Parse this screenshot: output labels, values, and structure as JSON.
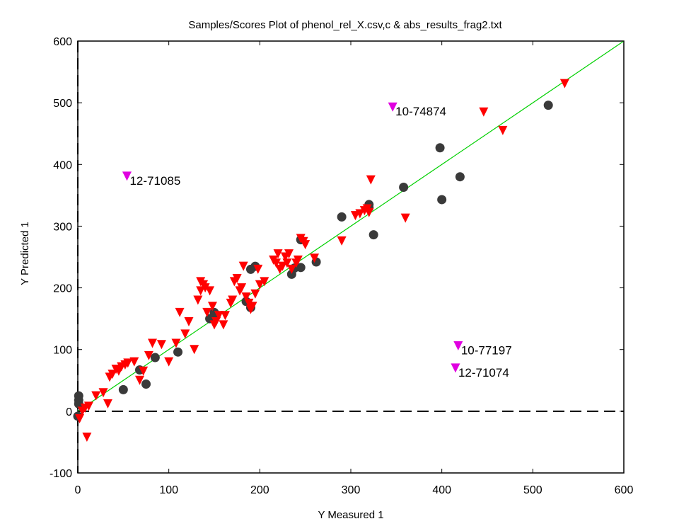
{
  "chart_data": {
    "type": "scatter",
    "title": "Samples/Scores Plot of phenol_rel_X.csv,c & abs_results_frag2.txt",
    "xlabel": "Y Measured 1",
    "ylabel": "Y Predicted 1",
    "xlim": [
      0,
      600
    ],
    "ylim": [
      -100,
      600
    ],
    "xticks": [
      0,
      100,
      200,
      300,
      400,
      500,
      600
    ],
    "yticks": [
      -100,
      0,
      100,
      200,
      300,
      400,
      500,
      600
    ],
    "grid": false,
    "reference_lines": [
      {
        "kind": "identity",
        "color": "#00d000",
        "from": [
          0,
          0
        ],
        "to": [
          600,
          600
        ]
      },
      {
        "kind": "zero-dashed",
        "color": "#000000"
      }
    ],
    "series": [
      {
        "marker": "circle",
        "color": "#3a3a3a",
        "x": [
          1,
          1,
          1,
          0,
          50,
          68,
          75,
          85,
          110,
          145,
          150,
          150,
          185,
          190,
          190,
          195,
          235,
          238,
          245,
          245,
          262,
          290,
          320,
          320,
          325,
          358,
          398,
          400,
          420,
          517
        ],
        "y": [
          25,
          18,
          12,
          -8,
          35,
          67,
          44,
          87,
          96,
          150,
          160,
          156,
          178,
          168,
          230,
          235,
          222,
          232,
          278,
          233,
          242,
          315,
          330,
          335,
          286,
          363,
          427,
          343,
          380,
          496
        ]
      },
      {
        "marker": "triangle-down",
        "color": "#ff0000",
        "x": [
          2,
          5,
          8,
          10,
          12,
          20,
          28,
          33,
          35,
          38,
          42,
          45,
          48,
          52,
          55,
          62,
          68,
          72,
          78,
          82,
          92,
          100,
          108,
          112,
          118,
          122,
          128,
          132,
          135,
          135,
          138,
          140,
          142,
          145,
          148,
          150,
          152,
          155,
          160,
          162,
          168,
          170,
          172,
          175,
          178,
          180,
          182,
          185,
          188,
          190,
          192,
          195,
          198,
          200,
          205,
          215,
          218,
          220,
          222,
          225,
          228,
          230,
          232,
          235,
          240,
          242,
          245,
          248,
          250,
          260,
          290,
          305,
          310,
          315,
          318,
          320,
          322,
          360,
          446,
          467,
          535
        ],
        "y": [
          -12,
          0,
          5,
          -42,
          8,
          25,
          30,
          12,
          55,
          60,
          68,
          65,
          72,
          75,
          78,
          80,
          50,
          65,
          90,
          110,
          108,
          80,
          110,
          160,
          125,
          145,
          100,
          180,
          195,
          210,
          205,
          200,
          160,
          195,
          170,
          140,
          145,
          155,
          140,
          155,
          175,
          180,
          210,
          215,
          195,
          200,
          235,
          185,
          175,
          165,
          170,
          190,
          230,
          205,
          210,
          245,
          240,
          255,
          230,
          235,
          250,
          240,
          255,
          230,
          240,
          245,
          280,
          275,
          270,
          248,
          276,
          317,
          320,
          325,
          328,
          322,
          375,
          313,
          485,
          455,
          531
        ]
      },
      {
        "marker": "triangle-down",
        "color": "#e000e0",
        "x": [
          54,
          346,
          418,
          415
        ],
        "y": [
          381,
          493,
          106,
          70
        ],
        "labels": [
          "12-71085",
          "10-74874",
          "10-77197",
          "12-71074"
        ]
      }
    ]
  }
}
